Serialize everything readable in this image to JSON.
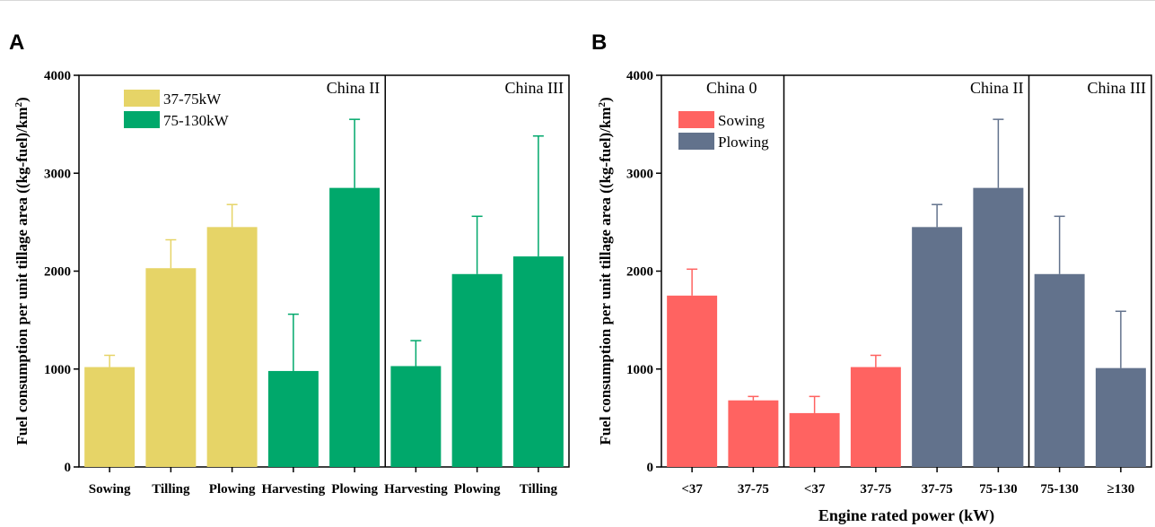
{
  "chart_data": [
    {
      "type": "bar",
      "panel_label": "A",
      "ylabel_main": "Fuel consumption per unit tillage area ((kg-fuel)/km",
      "ylabel_sup": "2",
      "ylabel_end": ")",
      "xlabel": "",
      "ylim": [
        0,
        4000
      ],
      "yticks": [
        "0",
        "1000",
        "2000",
        "3000",
        "4000"
      ],
      "legend_position": "top-left",
      "legend": [
        {
          "name": "37-75kW",
          "color": "#e6d467"
        },
        {
          "name": "75-130kW",
          "color": "#00a86b"
        }
      ],
      "regions": [
        {
          "label": "China II",
          "start": 0,
          "end": 5
        },
        {
          "label": "China III",
          "start": 5,
          "end": 8
        }
      ],
      "bars": [
        {
          "category": "Sowing",
          "value": 1020,
          "error": 1140,
          "series": 0
        },
        {
          "category": "Tilling",
          "value": 2030,
          "error": 2320,
          "series": 0
        },
        {
          "category": "Plowing",
          "value": 2450,
          "error": 2680,
          "series": 0
        },
        {
          "category": "Harvesting",
          "value": 980,
          "error": 1560,
          "series": 1
        },
        {
          "category": "Plowing",
          "value": 2850,
          "error": 3550,
          "series": 1
        },
        {
          "category": "Harvesting",
          "value": 1030,
          "error": 1290,
          "series": 1
        },
        {
          "category": "Plowing",
          "value": 1970,
          "error": 2560,
          "series": 1
        },
        {
          "category": "Tilling",
          "value": 2150,
          "error": 3380,
          "series": 1
        }
      ]
    },
    {
      "type": "bar",
      "panel_label": "B",
      "ylabel_main": "Fuel consumption per unit tillage area ((kg-fuel)/km",
      "ylabel_sup": "2",
      "ylabel_end": ")",
      "xlabel": "Engine rated power (kW)",
      "ylim": [
        0,
        4000
      ],
      "yticks": [
        "0",
        "1000",
        "2000",
        "3000",
        "4000"
      ],
      "legend_position": "top-left",
      "legend": [
        {
          "name": "Sowing",
          "color": "#ff6361"
        },
        {
          "name": "Plowing",
          "color": "#62728c"
        }
      ],
      "regions": [
        {
          "label": "China 0",
          "start": 0,
          "end": 2
        },
        {
          "label": "China II",
          "start": 2,
          "end": 6
        },
        {
          "label": "China III",
          "start": 6,
          "end": 8
        }
      ],
      "bars": [
        {
          "category": "<37",
          "value": 1750,
          "error": 2020,
          "series": 0
        },
        {
          "category": "37-75",
          "value": 680,
          "error": 720,
          "series": 0
        },
        {
          "category": "<37",
          "value": 550,
          "error": 720,
          "series": 0
        },
        {
          "category": "37-75",
          "value": 1020,
          "error": 1140,
          "series": 0
        },
        {
          "category": "37-75",
          "value": 2450,
          "error": 2680,
          "series": 1
        },
        {
          "category": "75-130",
          "value": 2850,
          "error": 3550,
          "series": 1
        },
        {
          "category": "75-130",
          "value": 1970,
          "error": 2560,
          "series": 1
        },
        {
          "category": "≥130",
          "value": 1010,
          "error": 1590,
          "series": 1
        }
      ]
    }
  ]
}
